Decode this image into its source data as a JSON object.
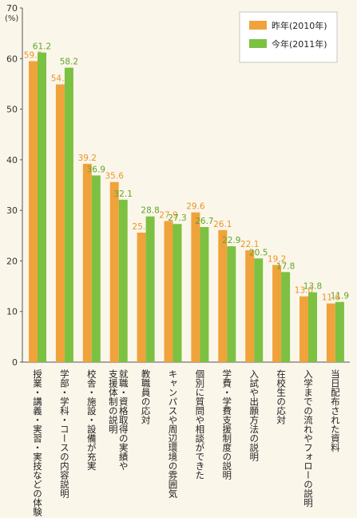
{
  "chart_data": {
    "type": "bar",
    "y_unit_label": "(%)",
    "ylim": [
      0,
      70
    ],
    "yticks": [
      0,
      10,
      20,
      30,
      40,
      50,
      60,
      70
    ],
    "grid": false,
    "legend_position": "top-right",
    "categories": [
      "授業・講義・実習・実技などの体験",
      "学部・学科・コースの内容説明",
      "校舎・施設・設備が充実",
      "就職・資格取得の実績や支援体制の説明",
      "教職員の応対",
      "キャンパスや周辺環境の雰囲気",
      "個別に質問や相談ができた",
      "学費・学費支援制度の説明",
      "入試や出願方法の説明",
      "在校生の応対",
      "入学までの流れやフォローの説明",
      "当日配布された資料"
    ],
    "category_lines": [
      [
        "授業・講義・実習・実技などの体験"
      ],
      [
        "学部・学科・コースの内容説明"
      ],
      [
        "校舎・施設・設備が充実"
      ],
      [
        "就職・資格取得の実績や",
        "支援体制の説明"
      ],
      [
        "教職員の応対"
      ],
      [
        "キャンパスや周辺環境の雰囲気"
      ],
      [
        "個別に質問や相談ができた"
      ],
      [
        "学費・学費支援制度の説明"
      ],
      [
        "入試や出願方法の説明"
      ],
      [
        "在校生の応対"
      ],
      [
        "入学までの流れやフォローの説明"
      ],
      [
        "当日配布された資料"
      ]
    ],
    "series": [
      {
        "name": "昨年(2010年)",
        "color": "#f0a33b",
        "label_color": "#e8952a",
        "values": [
          59.5,
          54.9,
          39.2,
          35.6,
          25.6,
          27.9,
          29.6,
          26.1,
          22.1,
          19.2,
          13.0,
          11.6
        ],
        "labels": [
          "59.5",
          "54.9",
          "39.2",
          "35.6",
          "25.6",
          "27.9",
          "29.6",
          "26.1",
          "22.1",
          "19.2",
          "13.0",
          "11.6"
        ]
      },
      {
        "name": "今年(2011年)",
        "color": "#7cc142",
        "label_color": "#5fa52c",
        "values": [
          61.2,
          58.2,
          36.9,
          32.1,
          28.8,
          27.3,
          26.7,
          22.9,
          20.5,
          17.8,
          13.8,
          11.9
        ],
        "labels": [
          "61.2",
          "58.2",
          "36.9",
          "32.1",
          "28.8",
          "27.3",
          "26.7",
          "22.9",
          "20.5",
          "17.8",
          "13.8",
          "11.9"
        ]
      }
    ]
  }
}
